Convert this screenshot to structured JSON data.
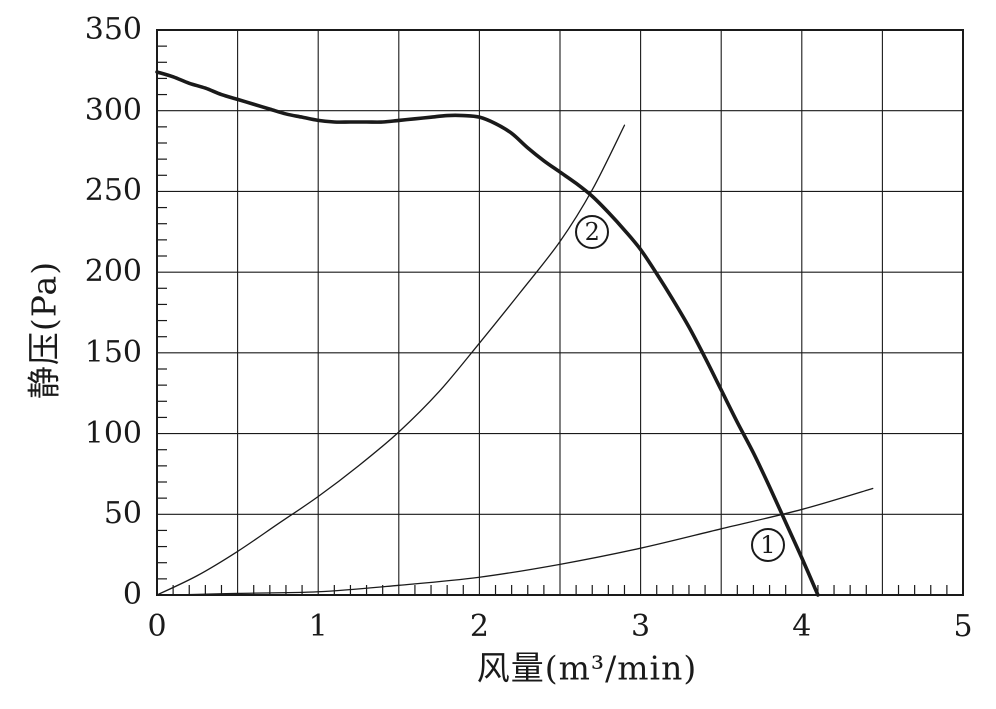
{
  "chart_data": {
    "type": "line",
    "title": "",
    "xlabel": "风量(m³/min)",
    "ylabel": "静压(Pa)",
    "xlim": [
      0,
      5
    ],
    "ylim": [
      0,
      350
    ],
    "x_ticks": [
      0,
      1,
      2,
      3,
      4,
      5
    ],
    "y_ticks": [
      0,
      50,
      100,
      150,
      200,
      250,
      300,
      350
    ],
    "x_grid_step": 0.5,
    "y_grid_step": 50,
    "x_minor_tick_step": 0.1,
    "y_minor_tick_step": 10,
    "grid": true,
    "legend_position": "none",
    "series": [
      {
        "name": "fan-performance-curve",
        "style": "thick",
        "points": [
          [
            0,
            324
          ],
          [
            0.1,
            321
          ],
          [
            0.2,
            317
          ],
          [
            0.3,
            314
          ],
          [
            0.4,
            310
          ],
          [
            0.5,
            307
          ],
          [
            0.6,
            304
          ],
          [
            0.7,
            301
          ],
          [
            0.8,
            298
          ],
          [
            0.9,
            296
          ],
          [
            1.0,
            294
          ],
          [
            1.1,
            293
          ],
          [
            1.2,
            293
          ],
          [
            1.3,
            293
          ],
          [
            1.4,
            293
          ],
          [
            1.5,
            294
          ],
          [
            1.6,
            295
          ],
          [
            1.7,
            296
          ],
          [
            1.8,
            297
          ],
          [
            1.9,
            297
          ],
          [
            2.0,
            296
          ],
          [
            2.1,
            292
          ],
          [
            2.2,
            286
          ],
          [
            2.3,
            277
          ],
          [
            2.4,
            269
          ],
          [
            2.5,
            262
          ],
          [
            2.6,
            255
          ],
          [
            2.7,
            247
          ],
          [
            2.8,
            237
          ],
          [
            2.9,
            226
          ],
          [
            3.0,
            214
          ],
          [
            3.1,
            199
          ],
          [
            3.2,
            183
          ],
          [
            3.3,
            166
          ],
          [
            3.4,
            147
          ],
          [
            3.5,
            127
          ],
          [
            3.6,
            107
          ],
          [
            3.7,
            88
          ],
          [
            3.8,
            67
          ],
          [
            3.9,
            45
          ],
          [
            4.0,
            23
          ],
          [
            4.1,
            0
          ]
        ]
      },
      {
        "name": "system-resistance-curve-2",
        "style": "thin",
        "points": [
          [
            0,
            0
          ],
          [
            0.25,
            12
          ],
          [
            0.5,
            27
          ],
          [
            0.75,
            44
          ],
          [
            1.0,
            61
          ],
          [
            1.25,
            80
          ],
          [
            1.5,
            101
          ],
          [
            1.75,
            126
          ],
          [
            2.0,
            156
          ],
          [
            2.25,
            187
          ],
          [
            2.5,
            219
          ],
          [
            2.7,
            251
          ],
          [
            2.9,
            291
          ]
        ]
      },
      {
        "name": "system-resistance-curve-1",
        "style": "thin",
        "points": [
          [
            0.1,
            0
          ],
          [
            0.5,
            1
          ],
          [
            1.0,
            2
          ],
          [
            1.5,
            6
          ],
          [
            2.0,
            11
          ],
          [
            2.5,
            19
          ],
          [
            3.0,
            29
          ],
          [
            3.5,
            41
          ],
          [
            4.0,
            53
          ],
          [
            4.44,
            66
          ]
        ]
      }
    ],
    "annotations": [
      {
        "label": "2",
        "x": 2.7,
        "y": 225
      },
      {
        "label": "1",
        "x": 3.79,
        "y": 31
      }
    ],
    "colors": {
      "background": "#ffffff",
      "line": "#1a1a1a",
      "grid": "#1a1a1a",
      "text": "#1a1a1a"
    }
  }
}
